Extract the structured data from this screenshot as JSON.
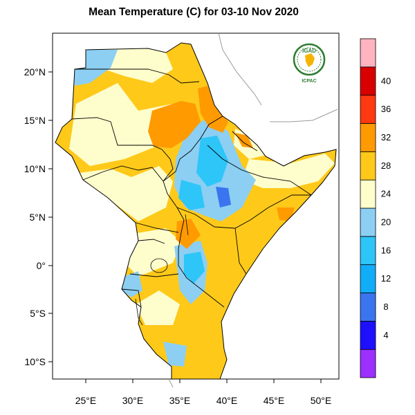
{
  "title": "Mean Temperature (C) for 03-10 Nov 2020",
  "logo": {
    "top_text": "IGAD",
    "bottom_text": "ICPAC",
    "icon": "igad-icpac-logo-icon",
    "color": "#2e7d32"
  },
  "axes": {
    "lon_ticks": [
      "25°E",
      "30°E",
      "35°E",
      "40°E",
      "45°E",
      "50°E"
    ],
    "lat_ticks": [
      "20°N",
      "15°N",
      "10°N",
      "5°N",
      "0°",
      "5°S",
      "10°S"
    ]
  },
  "colorbar": {
    "colors": [
      "#9b30ff",
      "#1e10ff",
      "#3a75ef",
      "#12adf8",
      "#2ec5f8",
      "#8ccff3",
      "#fefecc",
      "#ffc91a",
      "#ff9a00",
      "#ff3a10",
      "#d80000",
      "#ffb4c0"
    ],
    "labels": [
      "4",
      "8",
      "12",
      "16",
      "20",
      "24",
      "28",
      "32",
      "36",
      "40"
    ]
  },
  "palette": {
    "land_warm": "#ffc91a",
    "land_hot": "#ff9a00",
    "land_mild": "#fefecc",
    "land_cool": "#8ccff3",
    "land_cold": "#2ec5f8",
    "land_very_cold": "#3a75ef"
  }
}
